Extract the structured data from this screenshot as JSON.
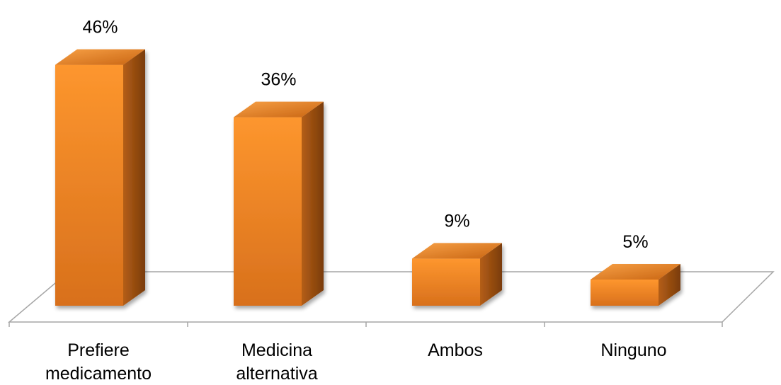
{
  "chart_data": {
    "type": "bar",
    "style": "3d-column",
    "categories": [
      [
        "Prefiere",
        "medicamento"
      ],
      [
        "Medicina",
        "alternativa"
      ],
      [
        "Ambos"
      ],
      [
        "Ninguno"
      ]
    ],
    "values": [
      46,
      36,
      9,
      5
    ],
    "data_labels": [
      "46%",
      "36%",
      "9%",
      "5%"
    ],
    "ylim": [
      0,
      50
    ],
    "grid": false,
    "legend": "none",
    "colors": {
      "bar_front_top": "#FD962E",
      "bar_front_bottom": "#D8701C",
      "bar_top_light": "#F7A045",
      "bar_top_dark": "#C96513",
      "bar_side_light": "#B45E18",
      "bar_side_dark": "#7A3C08",
      "floor_line": "#A6A6A6",
      "text": "#000000"
    }
  }
}
